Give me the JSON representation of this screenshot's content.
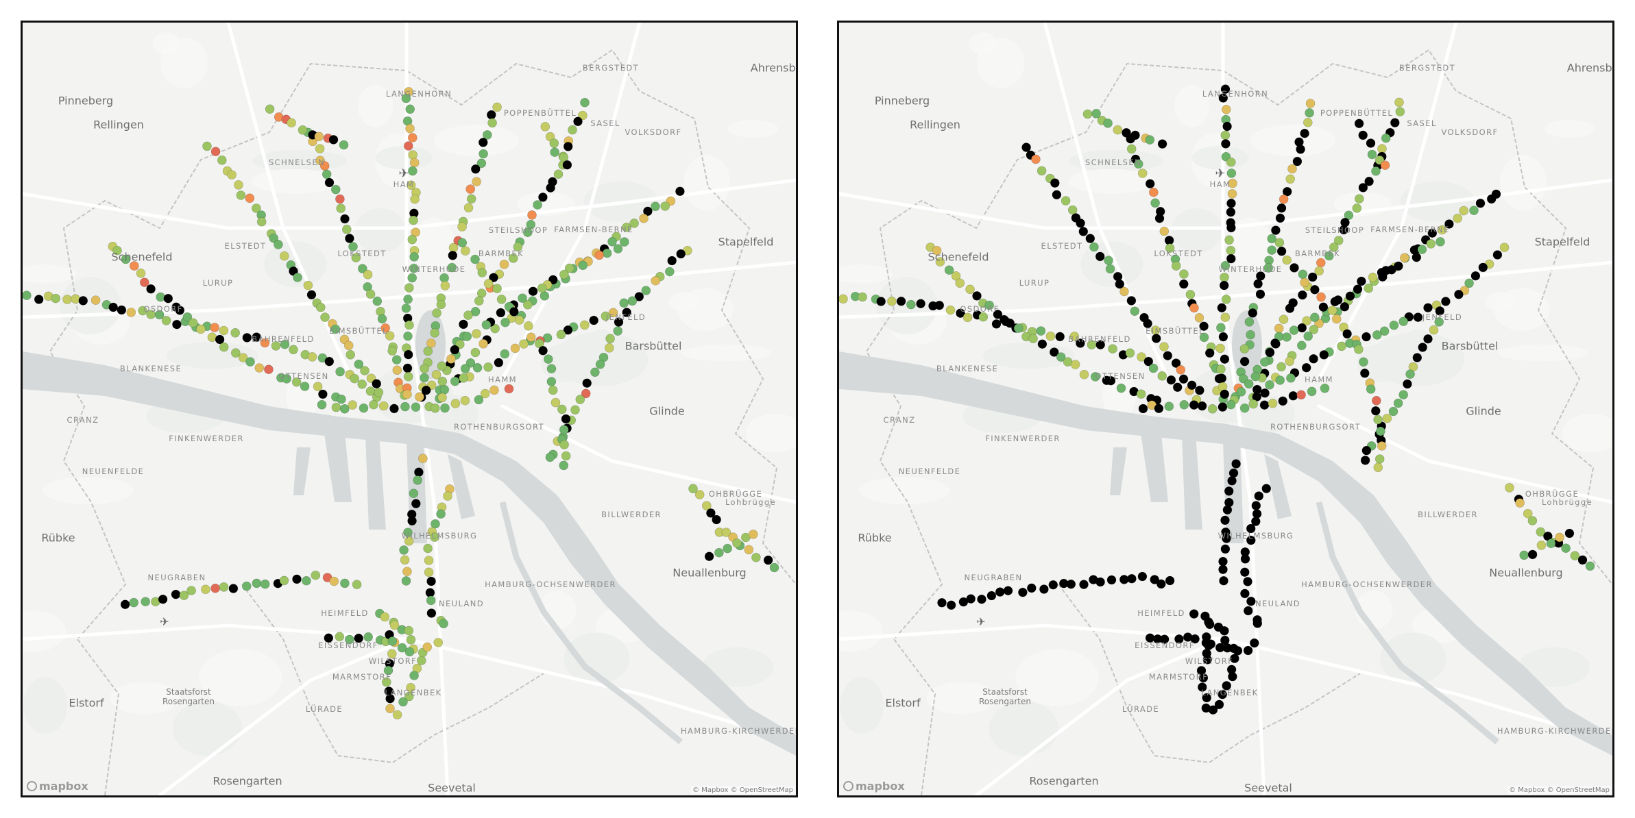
{
  "maps": [
    {
      "id": "left",
      "label": "map-panel-left",
      "variant": "colored"
    },
    {
      "id": "right",
      "label": "map-panel-right",
      "variant": "mostly-black"
    }
  ],
  "colors": {
    "land": "#f3f3f2",
    "water": "#d5d9da",
    "roads": "#ffffff",
    "boundary": "#c4c4c4",
    "border": "#111111",
    "point_scale": [
      "#6db36a",
      "#9cc463",
      "#c4cb62",
      "#e0bd5c",
      "#f08d4f",
      "#e06a55"
    ],
    "point_black": "#000000"
  },
  "places": [
    {
      "name": "Ahrensburg",
      "kind": "town"
    },
    {
      "name": "Pinneberg",
      "kind": "town"
    },
    {
      "name": "Rellingen",
      "kind": "town"
    },
    {
      "name": "Schenefeld",
      "kind": "town"
    },
    {
      "name": "Stapelfeld",
      "kind": "town"
    },
    {
      "name": "Barsbüttel",
      "kind": "town"
    },
    {
      "name": "Glinde",
      "kind": "town"
    },
    {
      "name": "Rübke",
      "kind": "town"
    },
    {
      "name": "Elstorf",
      "kind": "town"
    },
    {
      "name": "Rosengarten",
      "kind": "town"
    },
    {
      "name": "Seevetal",
      "kind": "town"
    },
    {
      "name": "Staatsforst Rosengarten",
      "kind": "small"
    },
    {
      "name": "BERGSTEDT",
      "kind": "district"
    },
    {
      "name": "LANGENHORN",
      "kind": "district"
    },
    {
      "name": "POPPENBÜTTEL",
      "kind": "district"
    },
    {
      "name": "SASEL",
      "kind": "district"
    },
    {
      "name": "VOLKSDORF",
      "kind": "district"
    },
    {
      "name": "SCHNELSEN",
      "kind": "district"
    },
    {
      "name": "HAM",
      "kind": "district"
    },
    {
      "name": "ELSTEDT",
      "kind": "district"
    },
    {
      "name": "LOKSTEDT",
      "kind": "district"
    },
    {
      "name": "STEILSHOOP",
      "kind": "district"
    },
    {
      "name": "FARMSEN-BERNE",
      "kind": "district"
    },
    {
      "name": "BARMBEK",
      "kind": "district"
    },
    {
      "name": "WINTERHUDE",
      "kind": "district"
    },
    {
      "name": "OSDORF",
      "kind": "district"
    },
    {
      "name": "BAHRENFELD",
      "kind": "district"
    },
    {
      "name": "EIMSBÜTTEL",
      "kind": "district"
    },
    {
      "name": "JENFELD",
      "kind": "district"
    },
    {
      "name": "LURUP",
      "kind": "district"
    },
    {
      "name": "BLANKENESE",
      "kind": "district"
    },
    {
      "name": "OTTENSEN",
      "kind": "district"
    },
    {
      "name": "HAMM",
      "kind": "district"
    },
    {
      "name": "CRANZ",
      "kind": "district"
    },
    {
      "name": "FINKENWERDER",
      "kind": "district"
    },
    {
      "name": "ROTHENBURGSORT",
      "kind": "district"
    },
    {
      "name": "NEUENFELDE",
      "kind": "district"
    },
    {
      "name": "BILLWERDER",
      "kind": "district"
    },
    {
      "name": "OHBRÜGGE",
      "kind": "district"
    },
    {
      "name": "WILHELMSBURG",
      "kind": "district"
    },
    {
      "name": "HAMBURG-OCHSENWERDER",
      "kind": "district"
    },
    {
      "name": "NEUGRABEN",
      "kind": "district"
    },
    {
      "name": "HEIMFELD",
      "kind": "district"
    },
    {
      "name": "NEULAND",
      "kind": "district"
    },
    {
      "name": "EISSENDORF",
      "kind": "district"
    },
    {
      "name": "WILSTORF",
      "kind": "district"
    },
    {
      "name": "MARMSTORF",
      "kind": "district"
    },
    {
      "name": "LANGENBEK",
      "kind": "district"
    },
    {
      "name": "LÜRADE",
      "kind": "district"
    },
    {
      "name": "Neuallenburg",
      "kind": "town"
    },
    {
      "name": "HAMBURG-KIRCHWERDER",
      "kind": "district"
    },
    {
      "name": "Lohbrügge",
      "kind": "district"
    }
  ],
  "branding": {
    "logo": "mapbox",
    "attribution": "© Mapbox © OpenStreetMap"
  }
}
